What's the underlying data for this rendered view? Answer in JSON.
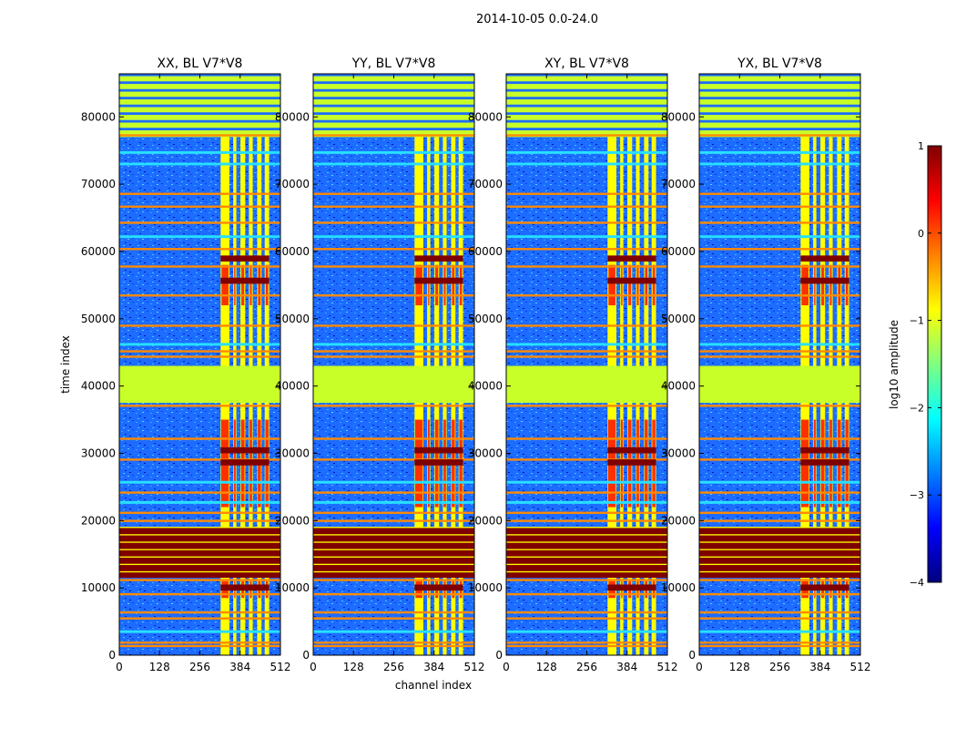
{
  "figure": {
    "title": "2014-10-05 0.0-24.0"
  },
  "axes": {
    "xlabel": "channel index",
    "ylabel": "time index"
  },
  "chart_data": [
    {
      "type": "heatmap",
      "title": "XX, BL V7*V8",
      "x_ticks": [
        0,
        128,
        256,
        384,
        512
      ],
      "y_ticks": [
        0,
        10000,
        20000,
        30000,
        40000,
        50000,
        60000,
        70000,
        80000
      ],
      "xlim": [
        0,
        512
      ],
      "ylim": [
        0,
        86400
      ],
      "xlabel": "",
      "ylabel": "time index"
    },
    {
      "type": "heatmap",
      "title": "YY, BL V7*V8",
      "x_ticks": [
        0,
        128,
        256,
        384,
        512
      ],
      "y_ticks": [
        0,
        10000,
        20000,
        30000,
        40000,
        50000,
        60000,
        70000,
        80000
      ],
      "xlim": [
        0,
        512
      ],
      "ylim": [
        0,
        86400
      ],
      "xlabel": "channel index",
      "ylabel": ""
    },
    {
      "type": "heatmap",
      "title": "XY, BL V7*V8",
      "x_ticks": [
        0,
        128,
        256,
        384,
        512
      ],
      "y_ticks": [
        0,
        10000,
        20000,
        30000,
        40000,
        50000,
        60000,
        70000,
        80000
      ],
      "xlim": [
        0,
        512
      ],
      "ylim": [
        0,
        86400
      ],
      "xlabel": "",
      "ylabel": ""
    },
    {
      "type": "heatmap",
      "title": "YX, BL V7*V8",
      "x_ticks": [
        0,
        128,
        256,
        384,
        512
      ],
      "y_ticks": [
        0,
        10000,
        20000,
        30000,
        40000,
        50000,
        60000,
        70000,
        80000
      ],
      "xlim": [
        0,
        512
      ],
      "ylim": [
        0,
        86400
      ],
      "xlabel": "",
      "ylabel": ""
    }
  ],
  "colorbar": {
    "label": "log10 amplitude",
    "ticks": [
      1,
      0,
      -1,
      -2,
      -3,
      -4
    ],
    "range": [
      -4,
      1
    ],
    "colormap": "jet",
    "colors": [
      "#00007f",
      "#0000ff",
      "#0080ff",
      "#00ffff",
      "#80ff80",
      "#ffff00",
      "#ff8000",
      "#ff0000",
      "#7f0000"
    ]
  },
  "bands": {
    "background": "#1d6cff",
    "saturated": "#7f0000",
    "flagged": "#c8ff28",
    "rfi": "#ffff00",
    "rfi_hot": "#ff3000",
    "line": "#ff8a00",
    "gap": "#27e0ff"
  }
}
